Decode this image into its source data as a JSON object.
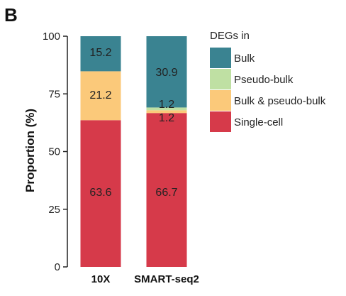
{
  "panel_letter": "B",
  "chart_data": {
    "type": "bar",
    "stacked": true,
    "categories": [
      "10X",
      "SMART-seq2"
    ],
    "ylabel": "Proportion (%)",
    "xlabel": "",
    "ylim": [
      0,
      100
    ],
    "yticks": [
      0,
      25,
      50,
      75,
      100
    ],
    "legend_title": "DEGs in",
    "legend_position": "right",
    "grid": false,
    "series": [
      {
        "name": "Single-cell",
        "color": "#d63a4a",
        "values": [
          63.6,
          66.7
        ],
        "labels": [
          "63.6",
          "66.7"
        ]
      },
      {
        "name": "Bulk & pseudo-bulk",
        "color": "#fbc97a",
        "values": [
          21.2,
          1.2
        ],
        "labels": [
          "21.2",
          "1.2"
        ]
      },
      {
        "name": "Pseudo-bulk",
        "color": "#bfe0a3",
        "values": [
          0,
          1.2
        ],
        "labels": [
          "",
          "1.2"
        ]
      },
      {
        "name": "Bulk",
        "color": "#3a8391",
        "values": [
          15.2,
          30.9
        ],
        "labels": [
          "15.2",
          "30.9"
        ]
      }
    ],
    "legend_order": [
      "Bulk",
      "Pseudo-bulk",
      "Bulk & pseudo-bulk",
      "Single-cell"
    ]
  }
}
